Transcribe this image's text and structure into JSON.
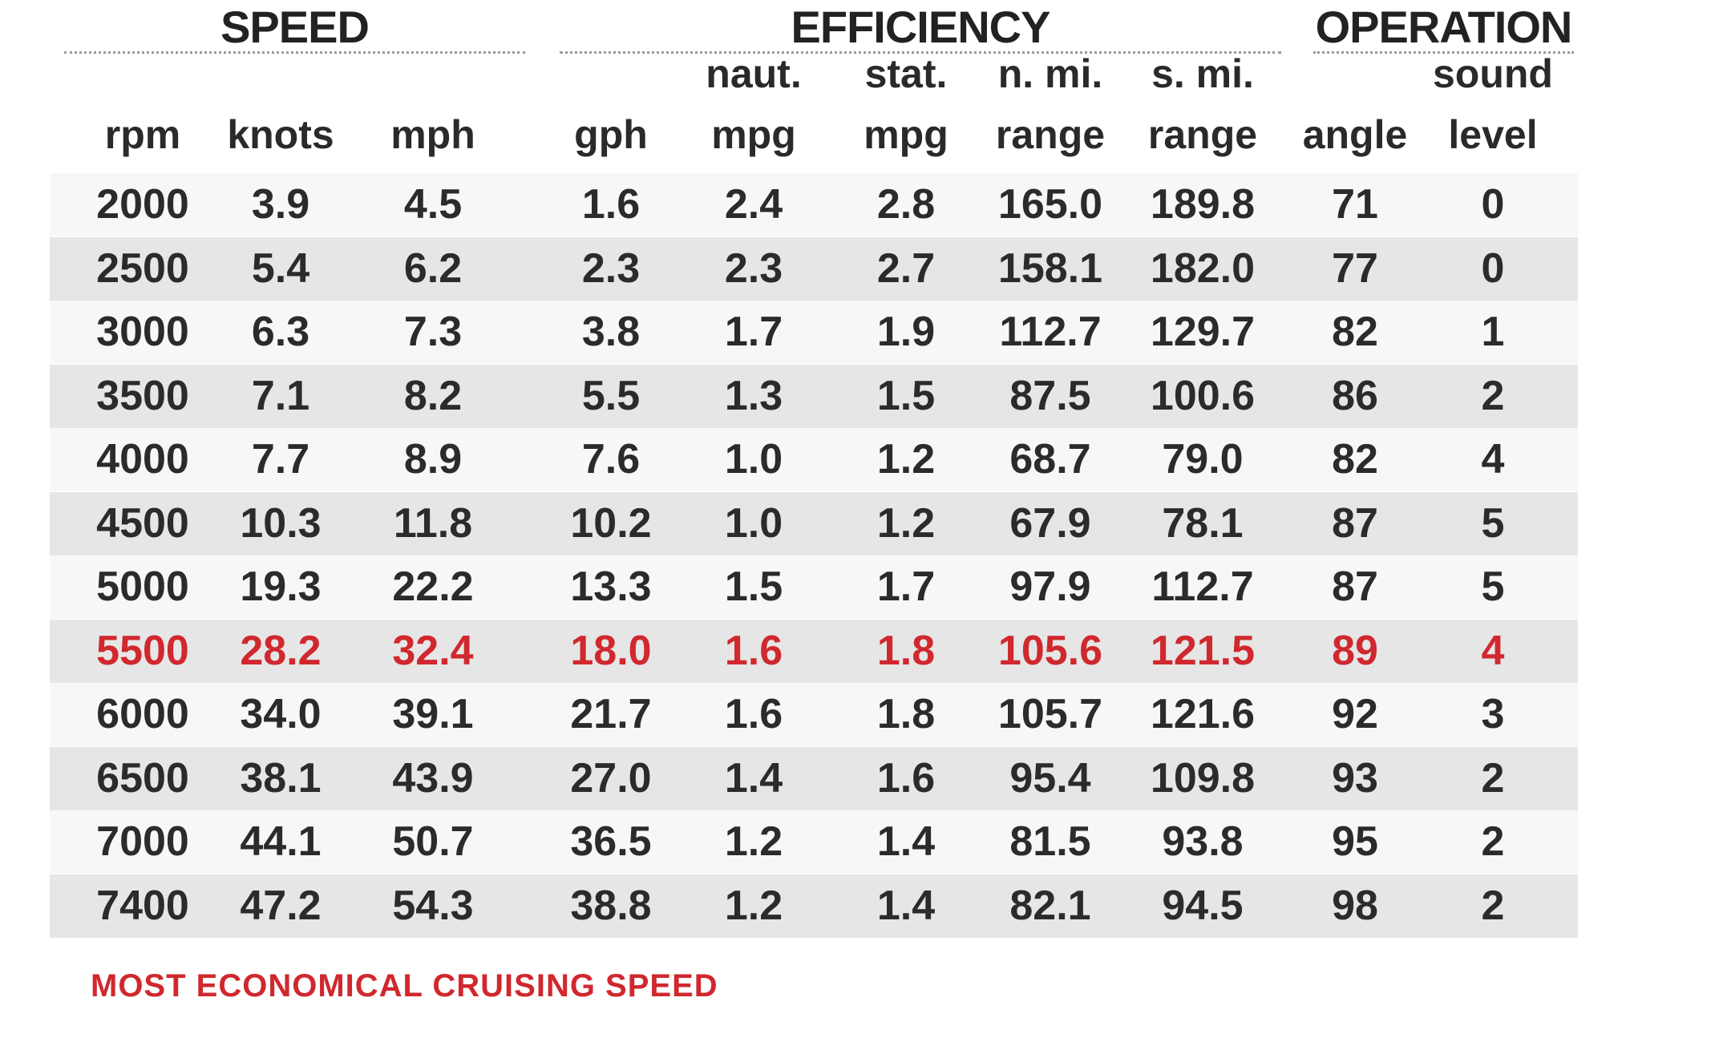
{
  "chart_data": {
    "type": "table",
    "groups": [
      {
        "title": "SPEED",
        "columns": [
          "rpm",
          "knots",
          "mph"
        ]
      },
      {
        "title": "EFFICIENCY",
        "columns": [
          "gph",
          "naut. mpg",
          "stat. mpg",
          "n. mi. range",
          "s. mi. range"
        ]
      },
      {
        "title": "OPERATION",
        "columns": [
          "angle",
          "sound level"
        ]
      }
    ],
    "headers": [
      {
        "line1": "",
        "line2": "rpm"
      },
      {
        "line1": "",
        "line2": "knots"
      },
      {
        "line1": "",
        "line2": "mph"
      },
      {
        "line1": "",
        "line2": "gph"
      },
      {
        "line1": "naut.",
        "line2": "mpg"
      },
      {
        "line1": "stat.",
        "line2": "mpg"
      },
      {
        "line1": "n. mi.",
        "line2": "range"
      },
      {
        "line1": "s. mi.",
        "line2": "range"
      },
      {
        "line1": "",
        "line2": "angle"
      },
      {
        "line1": "sound",
        "line2": "level"
      }
    ],
    "rows": [
      [
        "2000",
        "3.9",
        "4.5",
        "1.6",
        "2.4",
        "2.8",
        "165.0",
        "189.8",
        "71",
        "0"
      ],
      [
        "2500",
        "5.4",
        "6.2",
        "2.3",
        "2.3",
        "2.7",
        "158.1",
        "182.0",
        "77",
        "0"
      ],
      [
        "3000",
        "6.3",
        "7.3",
        "3.8",
        "1.7",
        "1.9",
        "112.7",
        "129.7",
        "82",
        "1"
      ],
      [
        "3500",
        "7.1",
        "8.2",
        "5.5",
        "1.3",
        "1.5",
        "87.5",
        "100.6",
        "86",
        "2"
      ],
      [
        "4000",
        "7.7",
        "8.9",
        "7.6",
        "1.0",
        "1.2",
        "68.7",
        "79.0",
        "82",
        "4"
      ],
      [
        "4500",
        "10.3",
        "11.8",
        "10.2",
        "1.0",
        "1.2",
        "67.9",
        "78.1",
        "87",
        "5"
      ],
      [
        "5000",
        "19.3",
        "22.2",
        "13.3",
        "1.5",
        "1.7",
        "97.9",
        "112.7",
        "87",
        "5"
      ],
      [
        "5500",
        "28.2",
        "32.4",
        "18.0",
        "1.6",
        "1.8",
        "105.6",
        "121.5",
        "89",
        "4"
      ],
      [
        "6000",
        "34.0",
        "39.1",
        "21.7",
        "1.6",
        "1.8",
        "105.7",
        "121.6",
        "92",
        "3"
      ],
      [
        "6500",
        "38.1",
        "43.9",
        "27.0",
        "1.4",
        "1.6",
        "95.4",
        "109.8",
        "93",
        "2"
      ],
      [
        "7000",
        "44.1",
        "50.7",
        "36.5",
        "1.2",
        "1.4",
        "81.5",
        "93.8",
        "95",
        "2"
      ],
      [
        "7400",
        "47.2",
        "54.3",
        "38.8",
        "1.2",
        "1.4",
        "82.1",
        "94.5",
        "98",
        "2"
      ]
    ],
    "highlight_row_rpm": "5500",
    "footnote": "MOST ECONOMICAL CRUISING SPEED",
    "colors": {
      "highlight": "#d0282e",
      "row_shade": "#e6e6e6",
      "row_light": "#f7f7f7",
      "text": "#2b2b2b"
    }
  }
}
